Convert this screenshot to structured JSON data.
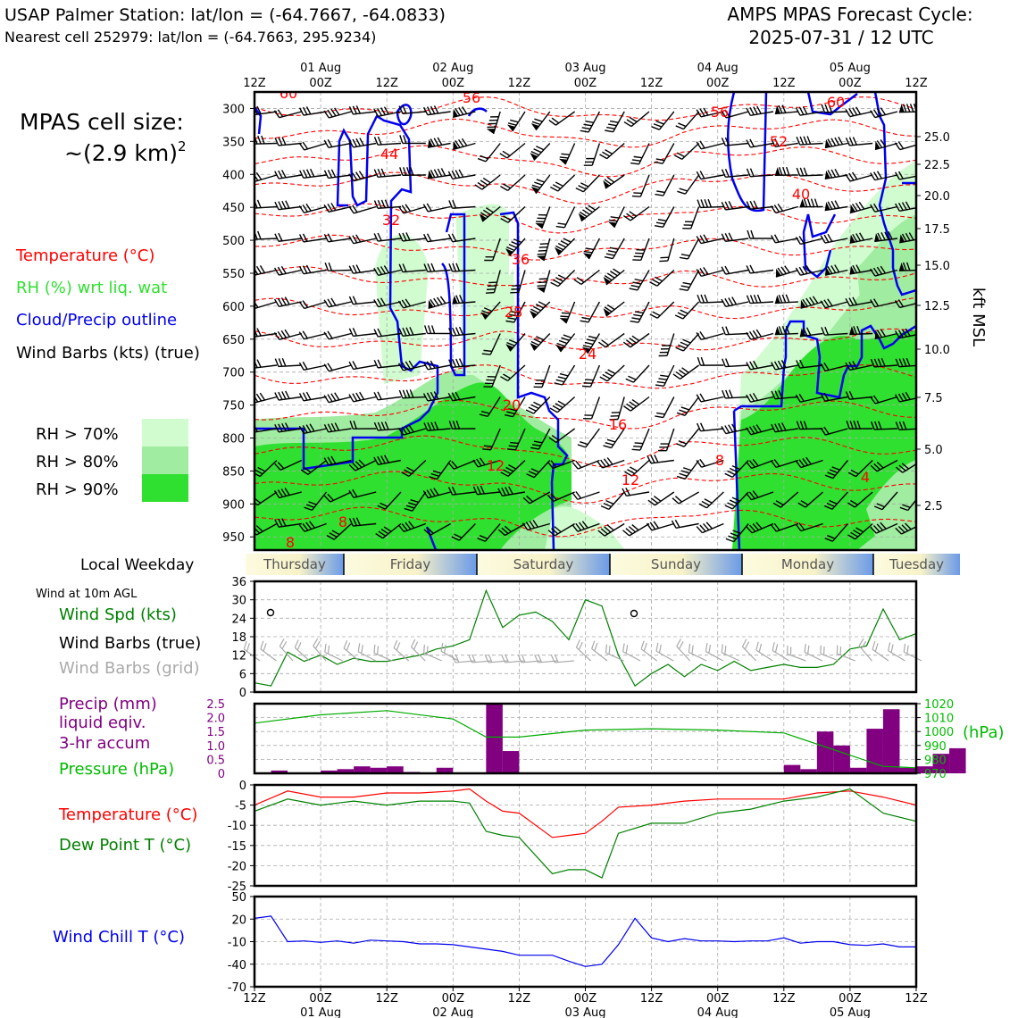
{
  "header": {
    "station": "USAP Palmer Station: lat/lon = (-64.7667, -64.0833)",
    "nearest": "Nearest cell 252979: lat/lon = (-64.7663, 295.9234)",
    "cycle_label": "AMPS MPAS Forecast Cycle:",
    "cycle_value": "2025-07-31 / 12 UTC"
  },
  "cell_size": {
    "line1": "MPAS cell size:",
    "line2": "~(2.9 km)",
    "exp": "2"
  },
  "legend": {
    "temperature": "Temperature (°C)",
    "rh": "RH (%) wrt liq. wat",
    "cloud": "Cloud/Precip outline",
    "wind": "Wind Barbs (kts) (true)",
    "rh70": "RH > 70%",
    "rh80": "RH > 80%",
    "rh90": "RH > 90%",
    "rh_colors": [
      "#d0fcd0",
      "#a0eca0",
      "#30e030"
    ]
  },
  "colors": {
    "temperature": "#ff0000",
    "rh": "#30e030",
    "cloud": "#0000ee",
    "precip": "#800080",
    "pressure": "#00aa00",
    "dewpoint": "#008000",
    "windchill": "#0000ee",
    "grid_barbs": "#aaaaaa"
  },
  "time_axis": {
    "top_labels": [
      "12Z",
      "00Z",
      "12Z",
      "00Z",
      "12Z",
      "00Z",
      "12Z",
      "00Z",
      "12Z",
      "00Z",
      "12Z"
    ],
    "date_labels": [
      "01 Aug",
      "02 Aug",
      "03 Aug",
      "04 Aug",
      "05 Aug"
    ]
  },
  "weekday": {
    "title": "Local Weekday",
    "days": [
      "Thursday",
      "Friday",
      "Saturday",
      "Sunday",
      "Monday",
      "Tuesday"
    ]
  },
  "sfc_labels": {
    "wind_title": "Wind at 10m AGL",
    "wind_spd": "Wind Spd (kts)",
    "wind_true": "Wind Barbs (true)",
    "wind_grid": "Wind Barbs (grid)",
    "precip1": "Precip (mm)",
    "precip2": "liquid eqiv.",
    "precip3": "3-hr accum",
    "pressure": "Pressure (hPa)",
    "pressure_unit": "(hPa)",
    "temp": "Temperature (°C)",
    "dew": "Dew Point T (°C)",
    "windchill": "Wind Chill T (°C)",
    "kft": "kft MSL"
  },
  "chart_data": [
    {
      "type": "heatmap",
      "title": "",
      "yaxis_left": {
        "ticks": [
          300,
          350,
          400,
          450,
          500,
          550,
          600,
          650,
          700,
          750,
          800,
          850,
          900,
          950
        ]
      },
      "yaxis_right": {
        "label": "kft MSL",
        "ticks": [
          2.5,
          5.0,
          7.5,
          10.0,
          12.5,
          15.0,
          17.5,
          20.0,
          22.5,
          25.0
        ]
      },
      "temperature_labels": [
        "60",
        "56",
        "56",
        "52",
        "60",
        "44",
        "40",
        "32",
        "36",
        "28",
        "24",
        "20",
        "16",
        "12",
        "12",
        "8",
        "8",
        "8",
        "4"
      ]
    },
    {
      "type": "line",
      "title": "Wind at 10m AGL",
      "ylim": [
        0,
        36
      ],
      "yticks": [
        0,
        6,
        12,
        18,
        24,
        30,
        36
      ],
      "series": [
        {
          "name": "Wind Spd (kts)",
          "x_hours": [
            0,
            3,
            6,
            9,
            12,
            15,
            18,
            21,
            24,
            27,
            30,
            33,
            36,
            39,
            42,
            45,
            48,
            51,
            54,
            57,
            60,
            63,
            66,
            69,
            72,
            75,
            78,
            81,
            84,
            87,
            90,
            93,
            96,
            99,
            102,
            105,
            108,
            111,
            114,
            117,
            120
          ],
          "values": [
            3,
            2,
            13,
            10,
            12,
            9,
            11,
            10,
            10,
            11,
            12,
            14,
            15,
            17,
            33,
            21,
            25,
            26,
            23,
            17,
            30,
            28,
            12,
            2,
            6,
            9,
            5,
            9,
            7,
            10,
            7,
            8,
            9,
            8,
            8,
            9,
            14,
            15,
            27,
            17,
            19
          ]
        }
      ]
    },
    {
      "type": "bar",
      "title": "Precip (mm) liquid eqiv. 3-hr accum",
      "ylim": [
        0,
        2.5
      ],
      "yticks": [
        0,
        0.5,
        1.0,
        1.5,
        2.0,
        2.5
      ],
      "x_hours": [
        0,
        3,
        6,
        9,
        12,
        15,
        18,
        21,
        24,
        27,
        30,
        33,
        36,
        39,
        42,
        45,
        48,
        51,
        54,
        57,
        60,
        63,
        66,
        69,
        72,
        75,
        78,
        81,
        84,
        87,
        90,
        93,
        96,
        99,
        102,
        105,
        108,
        111,
        114,
        117
      ],
      "values": [
        0.0,
        0.1,
        0.0,
        0.0,
        0.1,
        0.15,
        0.25,
        0.2,
        0.25,
        0.05,
        0.0,
        0.2,
        0.0,
        0.0,
        2.5,
        0.8,
        0.0,
        0.0,
        0.0,
        0.0,
        0.0,
        0.0,
        0.0,
        0.0,
        0.0,
        0.0,
        0.0,
        0.0,
        0.0,
        0.0,
        0.0,
        0.0,
        0.3,
        0.15,
        1.5,
        1.0,
        0.2,
        1.6,
        2.3,
        0.2
      ],
      "extra": {
        "values_tail": [
          0.25,
          0.7,
          0.9
        ]
      },
      "pressure": {
        "name": "Pressure (hPa)",
        "ylim": [
          970,
          1020
        ],
        "yticks": [
          970,
          980,
          990,
          1000,
          1010,
          1020
        ],
        "x_hours": [
          0,
          12,
          24,
          36,
          42,
          48,
          60,
          72,
          84,
          96,
          108,
          114,
          120
        ],
        "values": [
          1006,
          1012,
          1015,
          1009,
          996,
          996,
          1001,
          1002,
          1001,
          999,
          983,
          975,
          974
        ]
      }
    },
    {
      "type": "line",
      "title": "Temperature / Dew Point",
      "ylim": [
        -25,
        0
      ],
      "yticks": [
        0,
        -5,
        -10,
        -15,
        -20,
        -25
      ],
      "series": [
        {
          "name": "Temperature (°C)",
          "x_hours": [
            0,
            6,
            12,
            18,
            24,
            30,
            36,
            39,
            42,
            45,
            48,
            54,
            57,
            60,
            63,
            66,
            72,
            78,
            84,
            90,
            96,
            102,
            108,
            114,
            120
          ],
          "values": [
            -5,
            -1.5,
            -3,
            -3,
            -2,
            -2,
            -1.5,
            -1,
            -4,
            -6.5,
            -7,
            -13,
            -12.5,
            -12,
            -9,
            -5.5,
            -5,
            -4,
            -3.5,
            -3.5,
            -3.5,
            -2,
            -1.5,
            -3,
            -5
          ]
        },
        {
          "name": "Dew Point T (°C)",
          "x_hours": [
            0,
            6,
            12,
            18,
            24,
            30,
            36,
            39,
            42,
            45,
            48,
            54,
            57,
            60,
            63,
            66,
            72,
            78,
            84,
            90,
            96,
            102,
            108,
            114,
            120
          ],
          "values": [
            -6.5,
            -3.5,
            -5,
            -4,
            -5,
            -4,
            -4,
            -4.5,
            -11.5,
            -12.5,
            -13,
            -22,
            -21,
            -21,
            -23,
            -12,
            -9.5,
            -9.5,
            -7,
            -6,
            -4,
            -3,
            -1,
            -7,
            -9
          ]
        }
      ]
    },
    {
      "type": "line",
      "title": "Wind Chill T (°C)",
      "ylim": [
        -70,
        50
      ],
      "yticks": [
        50,
        20,
        -10,
        -40,
        -70
      ],
      "series": [
        {
          "name": "Wind Chill T (°C)",
          "x_hours": [
            0,
            3,
            6,
            9,
            12,
            15,
            18,
            21,
            24,
            27,
            30,
            33,
            36,
            39,
            42,
            45,
            48,
            51,
            54,
            57,
            60,
            63,
            66,
            69,
            72,
            75,
            78,
            81,
            84,
            87,
            90,
            93,
            96,
            99,
            102,
            105,
            108,
            111,
            114,
            117,
            120
          ],
          "values": [
            21,
            24,
            -10,
            -9,
            -11,
            -9,
            -12,
            -8,
            -9,
            -10,
            -13,
            -13,
            -14,
            -17,
            -20,
            -23,
            -28,
            -28,
            -28,
            -36,
            -43,
            -40,
            -14,
            21,
            -5,
            -10,
            -6,
            -9,
            -9,
            -10,
            -9,
            -9,
            -5,
            -12,
            -10,
            -10,
            -14,
            -15,
            -13,
            -17,
            -17
          ]
        }
      ]
    }
  ]
}
